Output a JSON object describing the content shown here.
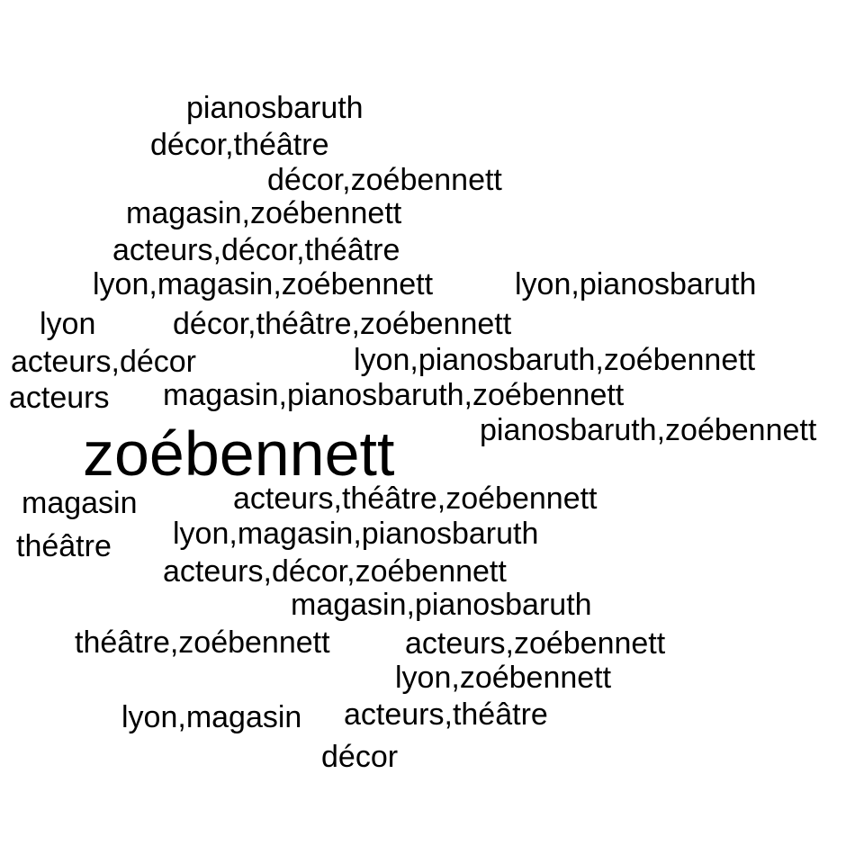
{
  "words": [
    {
      "text": "pianosbaruth"
    },
    {
      "text": "décor,théâtre"
    },
    {
      "text": "décor,zoébennett"
    },
    {
      "text": "magasin,zoébennett"
    },
    {
      "text": "acteurs,décor,théâtre"
    },
    {
      "text": "lyon,magasin,zoébennett"
    },
    {
      "text": "lyon,pianosbaruth"
    },
    {
      "text": "lyon"
    },
    {
      "text": "décor,théâtre,zoébennett"
    },
    {
      "text": "acteurs,décor"
    },
    {
      "text": "lyon,pianosbaruth,zoébennett"
    },
    {
      "text": "acteurs"
    },
    {
      "text": "magasin,pianosbaruth,zoébennett"
    },
    {
      "text": "pianosbaruth,zoébennett"
    },
    {
      "text": "zoébennett"
    },
    {
      "text": "magasin"
    },
    {
      "text": "acteurs,théâtre,zoébennett"
    },
    {
      "text": "théâtre"
    },
    {
      "text": "lyon,magasin,pianosbaruth"
    },
    {
      "text": "acteurs,décor,zoébennett"
    },
    {
      "text": "magasin,pianosbaruth"
    },
    {
      "text": "théâtre,zoébennett"
    },
    {
      "text": "acteurs,zoébennett"
    },
    {
      "text": "lyon,zoébennett"
    },
    {
      "text": "lyon,magasin"
    },
    {
      "text": "acteurs,théâtre"
    },
    {
      "text": "décor"
    }
  ],
  "colors": {
    "text": "#000000",
    "background": "#ffffff"
  }
}
